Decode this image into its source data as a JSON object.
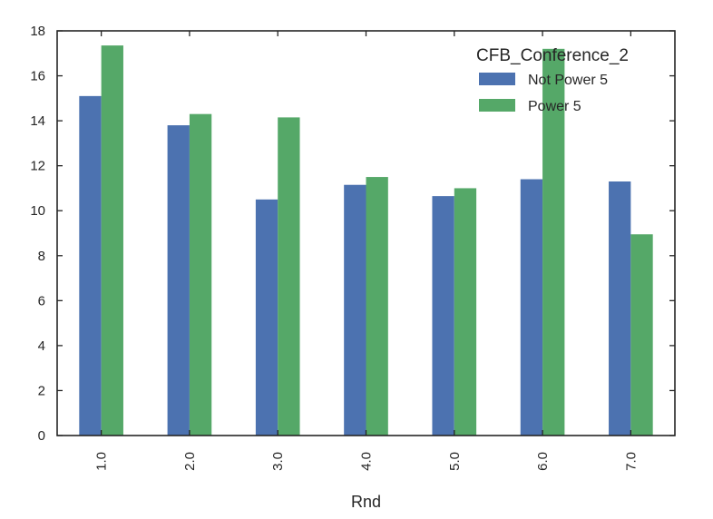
{
  "chart_data": {
    "type": "bar",
    "title": "",
    "xlabel": "Rnd",
    "ylabel": "",
    "categories": [
      "1.0",
      "2.0",
      "3.0",
      "4.0",
      "5.0",
      "6.0",
      "7.0"
    ],
    "series": [
      {
        "name": "Not Power 5",
        "color": "#4c72b0",
        "values": [
          15.1,
          13.8,
          10.5,
          11.15,
          10.65,
          11.4,
          11.3
        ]
      },
      {
        "name": "Power 5",
        "color": "#55a868",
        "values": [
          17.35,
          14.3,
          14.15,
          11.5,
          11.0,
          17.2,
          8.95
        ]
      }
    ],
    "ylim": [
      0,
      18
    ],
    "yticks": [
      "0",
      "2",
      "4",
      "6",
      "8",
      "10",
      "12",
      "14",
      "16",
      "18"
    ],
    "legend": {
      "title": "CFB_Conference_2",
      "position": "top-right"
    },
    "grid": false
  }
}
